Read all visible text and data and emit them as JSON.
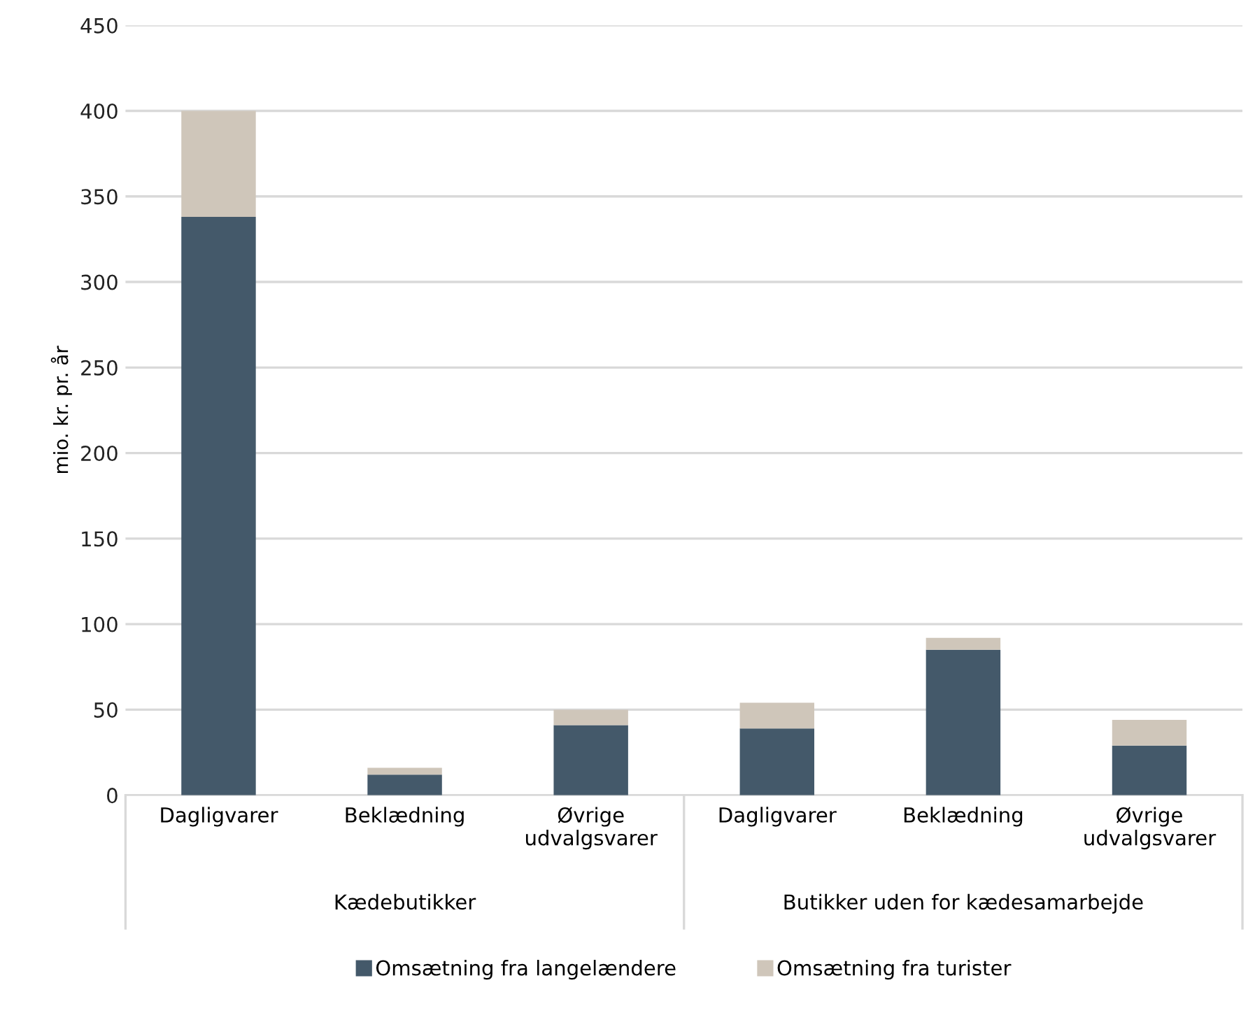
{
  "chart_data": {
    "type": "bar",
    "stacked": true,
    "ylabel": "mio. kr. pr. år",
    "categories": [
      "Dagligvarer",
      "Beklædning",
      "Øvrige\nudvalgsvarer",
      "Dagligvarer",
      "Beklædning",
      "Øvrige\nudvalgsvarer"
    ],
    "series": [
      {
        "name": "Omsætning fra langelændere",
        "color": "#44596a",
        "values": [
          338,
          12,
          41,
          39,
          85,
          29
        ]
      },
      {
        "name": "Omsætning fra turister",
        "color": "#cfc6ba",
        "values": [
          62,
          4,
          9,
          15,
          7,
          15
        ]
      }
    ],
    "annotations": [
      "Kædebutikker",
      "Butikker uden for kædesamarbejde"
    ],
    "ylim": [
      0,
      450
    ],
    "yticks": [
      0,
      50,
      100,
      150,
      200,
      250,
      300,
      350,
      400,
      450
    ],
    "grid": "y",
    "legend": "bottom"
  }
}
